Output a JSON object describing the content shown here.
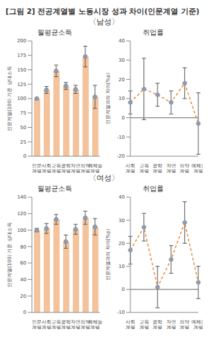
{
  "title": "[그림 2] 전공계열별 노동시장 성과 차이(인문계열 기준)",
  "chart_data": [
    {
      "group": "〈남성〉",
      "type": "bar",
      "title": "월평균소득",
      "y_label": "인문계열(100) 기준 상대소득",
      "categories": [
        "인문계열",
        "사회계열",
        "교육계열",
        "공학계열",
        "자연계열",
        "의약계열",
        "예체능계열"
      ],
      "values": [
        100,
        115,
        148,
        122,
        116,
        173,
        103
      ],
      "errors": [
        1,
        6,
        10,
        6,
        7,
        18,
        20
      ],
      "color": "#f4c39c",
      "marker": "circle",
      "ylim": [
        0,
        200
      ],
      "yticks": [
        0,
        25,
        50,
        75,
        100,
        125,
        150,
        175,
        200
      ],
      "grid": false
    },
    {
      "group": "〈남성〉",
      "type": "line",
      "title": "취업률",
      "y_label": "인문계열과의 차이(%p)",
      "categories": [
        "사회계열",
        "교육계열",
        "공학계열",
        "자연계열",
        "의약계열",
        "예체능계열"
      ],
      "values": [
        8,
        15,
        12,
        8,
        18,
        -3
      ],
      "errors": [
        6,
        16,
        6,
        6,
        8,
        16
      ],
      "color": "#e8893a",
      "marker": "circle",
      "line_style": "dashed",
      "ylim": [
        -20,
        40
      ],
      "yticks": [
        -20,
        -10,
        0,
        10,
        20,
        30,
        40
      ],
      "grid": false
    },
    {
      "group": "〈여성〉",
      "type": "bar",
      "title": "월평균소득",
      "y_label": "인문계열(100) 기준 상대소득",
      "categories": [
        "인문계열",
        "사회계열",
        "교육계열",
        "공학계열",
        "자연계열",
        "의약계열",
        "예체능계열"
      ],
      "values": [
        100,
        102,
        113,
        86,
        101,
        115,
        104
      ],
      "errors": [
        2,
        6,
        6,
        8,
        6,
        8,
        10
      ],
      "color": "#f4c39c",
      "marker": "circle",
      "ylim": [
        0,
        140
      ],
      "yticks": [
        0,
        20,
        40,
        60,
        80,
        100,
        120,
        140
      ],
      "grid": false
    },
    {
      "group": "〈여성〉",
      "type": "line",
      "title": "취업률",
      "y_label": "인문계열과의 차이(%p)",
      "categories": [
        "사회계열",
        "교육계열",
        "공학계열",
        "자연계열",
        "의약계열",
        "예체능계열"
      ],
      "values": [
        17,
        27,
        1,
        13,
        29,
        3
      ],
      "errors": [
        6,
        6,
        9,
        6,
        9,
        7
      ],
      "color": "#e8893a",
      "marker": "circle",
      "line_style": "dashed",
      "ylim": [
        -10,
        40
      ],
      "yticks": [
        -10,
        0,
        10,
        20,
        30,
        40
      ],
      "grid": false
    }
  ]
}
